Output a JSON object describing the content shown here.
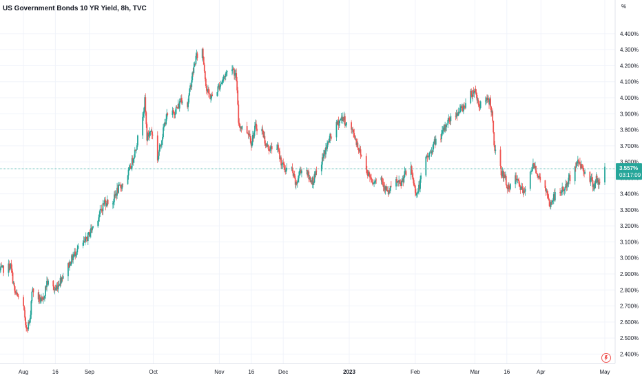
{
  "chart_data": {
    "type": "candlestick",
    "title": "US Government Bonds 10 YR Yield, 8h, TVC",
    "unit_label": "%",
    "ylim": [
      2.35,
      4.55
    ],
    "grid": true,
    "colors": {
      "up": "#26a69a",
      "down": "#ef5350",
      "grid": "#f0f3fa",
      "axis_text": "#131722",
      "last_price": "#26a69a"
    },
    "y_ticks": [
      "2.400%",
      "2.500%",
      "2.600%",
      "2.700%",
      "2.800%",
      "2.900%",
      "3.000%",
      "3.100%",
      "3.200%",
      "3.300%",
      "3.400%",
      "3.500%",
      "3.600%",
      "3.700%",
      "3.800%",
      "3.900%",
      "4.000%",
      "4.100%",
      "4.200%",
      "4.300%",
      "4.400%"
    ],
    "x_labels": [
      "Aug",
      "16",
      "Sep",
      "Oct",
      "Nov",
      "16",
      "Dec",
      "2023",
      "Feb",
      "Mar",
      "16",
      "Apr",
      "May"
    ],
    "x_range": [
      "2022-07-21",
      "2023-05-01"
    ],
    "x_label_dates": [
      "2022-08-01",
      "2022-08-16",
      "2022-09-01",
      "2022-10-01",
      "2022-11-01",
      "2022-11-16",
      "2022-12-01",
      "2023-01-01",
      "2023-02-01",
      "2023-03-01",
      "2023-03-16",
      "2023-04-01",
      "2023-05-01"
    ],
    "bold_x_labels": [
      "2023"
    ],
    "last_value": "3.557%",
    "last_value_num": 3.557,
    "countdown": "03:17:09",
    "series_close": [
      [
        "2022-07-21",
        2.92
      ],
      [
        "2022-07-26",
        2.95
      ],
      [
        "2022-07-28",
        2.78
      ],
      [
        "2022-08-01",
        2.71
      ],
      [
        "2022-08-02",
        2.56
      ],
      [
        "2022-08-04",
        2.6
      ],
      [
        "2022-08-05",
        2.8
      ],
      [
        "2022-08-10",
        2.72
      ],
      [
        "2022-08-12",
        2.85
      ],
      [
        "2022-08-16",
        2.8
      ],
      [
        "2022-08-19",
        2.88
      ],
      [
        "2022-08-22",
        2.95
      ],
      [
        "2022-08-26",
        3.05
      ],
      [
        "2022-08-30",
        3.1
      ],
      [
        "2022-09-02",
        3.18
      ],
      [
        "2022-09-06",
        3.28
      ],
      [
        "2022-09-08",
        3.35
      ],
      [
        "2022-09-12",
        3.35
      ],
      [
        "2022-09-14",
        3.42
      ],
      [
        "2022-09-16",
        3.45
      ],
      [
        "2022-09-20",
        3.55
      ],
      [
        "2022-09-23",
        3.7
      ],
      [
        "2022-09-26",
        3.9
      ],
      [
        "2022-09-27",
        3.98
      ],
      [
        "2022-09-28",
        3.75
      ],
      [
        "2022-09-30",
        3.8
      ],
      [
        "2022-10-03",
        3.62
      ],
      [
        "2022-10-05",
        3.75
      ],
      [
        "2022-10-07",
        3.88
      ],
      [
        "2022-10-10",
        3.9
      ],
      [
        "2022-10-13",
        3.95
      ],
      [
        "2022-10-14",
        4.0
      ],
      [
        "2022-10-17",
        3.95
      ],
      [
        "2022-10-19",
        4.12
      ],
      [
        "2022-10-21",
        4.25
      ],
      [
        "2022-10-24",
        4.3
      ],
      [
        "2022-10-26",
        4.05
      ],
      [
        "2022-10-28",
        4.0
      ],
      [
        "2022-10-31",
        4.05
      ],
      [
        "2022-11-02",
        4.1
      ],
      [
        "2022-11-04",
        4.15
      ],
      [
        "2022-11-07",
        4.2
      ],
      [
        "2022-11-09",
        4.12
      ],
      [
        "2022-11-10",
        3.85
      ],
      [
        "2022-11-11",
        3.82
      ],
      [
        "2022-11-15",
        3.78
      ],
      [
        "2022-11-16",
        3.72
      ],
      [
        "2022-11-18",
        3.82
      ],
      [
        "2022-11-21",
        3.8
      ],
      [
        "2022-11-23",
        3.7
      ],
      [
        "2022-11-25",
        3.68
      ],
      [
        "2022-11-28",
        3.7
      ],
      [
        "2022-11-30",
        3.6
      ],
      [
        "2022-12-02",
        3.55
      ],
      [
        "2022-12-05",
        3.55
      ],
      [
        "2022-12-07",
        3.45
      ],
      [
        "2022-12-09",
        3.55
      ],
      [
        "2022-12-12",
        3.55
      ],
      [
        "2022-12-13",
        3.5
      ],
      [
        "2022-12-15",
        3.48
      ],
      [
        "2022-12-19",
        3.6
      ],
      [
        "2022-12-21",
        3.68
      ],
      [
        "2022-12-23",
        3.75
      ],
      [
        "2022-12-27",
        3.85
      ],
      [
        "2022-12-29",
        3.88
      ],
      [
        "2022-12-30",
        3.85
      ],
      [
        "2023-01-03",
        3.78
      ],
      [
        "2023-01-05",
        3.7
      ],
      [
        "2023-01-09",
        3.55
      ],
      [
        "2023-01-12",
        3.48
      ],
      [
        "2023-01-16",
        3.5
      ],
      [
        "2023-01-19",
        3.4
      ],
      [
        "2023-01-23",
        3.48
      ],
      [
        "2023-01-25",
        3.45
      ],
      [
        "2023-01-27",
        3.52
      ],
      [
        "2023-01-30",
        3.55
      ],
      [
        "2023-02-01",
        3.42
      ],
      [
        "2023-02-02",
        3.4
      ],
      [
        "2023-02-06",
        3.62
      ],
      [
        "2023-02-08",
        3.65
      ],
      [
        "2023-02-10",
        3.72
      ],
      [
        "2023-02-14",
        3.78
      ],
      [
        "2023-02-16",
        3.85
      ],
      [
        "2023-02-20",
        3.9
      ],
      [
        "2023-02-22",
        3.92
      ],
      [
        "2023-02-24",
        3.95
      ],
      [
        "2023-02-27",
        4.02
      ],
      [
        "2023-03-01",
        4.05
      ],
      [
        "2023-03-03",
        3.95
      ],
      [
        "2023-03-06",
        3.98
      ],
      [
        "2023-03-08",
        3.98
      ],
      [
        "2023-03-09",
        3.9
      ],
      [
        "2023-03-10",
        3.7
      ],
      [
        "2023-03-13",
        3.55
      ],
      [
        "2023-03-15",
        3.5
      ],
      [
        "2023-03-17",
        3.42
      ],
      [
        "2023-03-20",
        3.5
      ],
      [
        "2023-03-22",
        3.45
      ],
      [
        "2023-03-24",
        3.4
      ],
      [
        "2023-03-27",
        3.55
      ],
      [
        "2023-03-29",
        3.58
      ],
      [
        "2023-03-31",
        3.5
      ],
      [
        "2023-04-03",
        3.45
      ],
      [
        "2023-04-05",
        3.32
      ],
      [
        "2023-04-07",
        3.38
      ],
      [
        "2023-04-11",
        3.42
      ],
      [
        "2023-04-13",
        3.45
      ],
      [
        "2023-04-17",
        3.58
      ],
      [
        "2023-04-19",
        3.6
      ],
      [
        "2023-04-21",
        3.55
      ],
      [
        "2023-04-24",
        3.5
      ],
      [
        "2023-04-26",
        3.45
      ],
      [
        "2023-04-27",
        3.5
      ],
      [
        "2023-04-28",
        3.45
      ],
      [
        "2023-05-01",
        3.557
      ]
    ]
  }
}
